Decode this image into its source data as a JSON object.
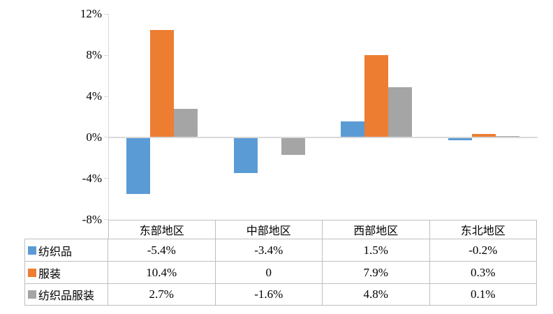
{
  "chart_data": {
    "type": "bar",
    "title": "",
    "categories": [
      "东部地区",
      "中部地区",
      "西部地区",
      "东北地区"
    ],
    "series": [
      {
        "name": "纺织品",
        "color": "#5B9BD5",
        "values": [
          -5.4,
          -3.4,
          1.5,
          -0.2
        ],
        "display": [
          "-5.4%",
          "-3.4%",
          "1.5%",
          "-0.2%"
        ]
      },
      {
        "name": "服装",
        "color": "#ED7D31",
        "values": [
          10.4,
          0,
          7.9,
          0.3
        ],
        "display": [
          "10.4%",
          "0",
          "7.9%",
          "0.3%"
        ]
      },
      {
        "name": "纺织品服装",
        "color": "#A5A5A5",
        "values": [
          2.7,
          -1.6,
          4.8,
          0.1
        ],
        "display": [
          "2.7%",
          "-1.6%",
          "4.8%",
          "0.1%"
        ]
      }
    ],
    "y_ticks": [
      "12%",
      "8%",
      "4%",
      "0%",
      "-4%",
      "-8%"
    ],
    "ylim": [
      -8,
      12
    ],
    "y_step": 4,
    "grid": false,
    "legend_position": "table-left-column",
    "colors": {
      "axis": "#D9D9D9",
      "table_border": "#BFBFBF",
      "text": "#000000"
    }
  }
}
